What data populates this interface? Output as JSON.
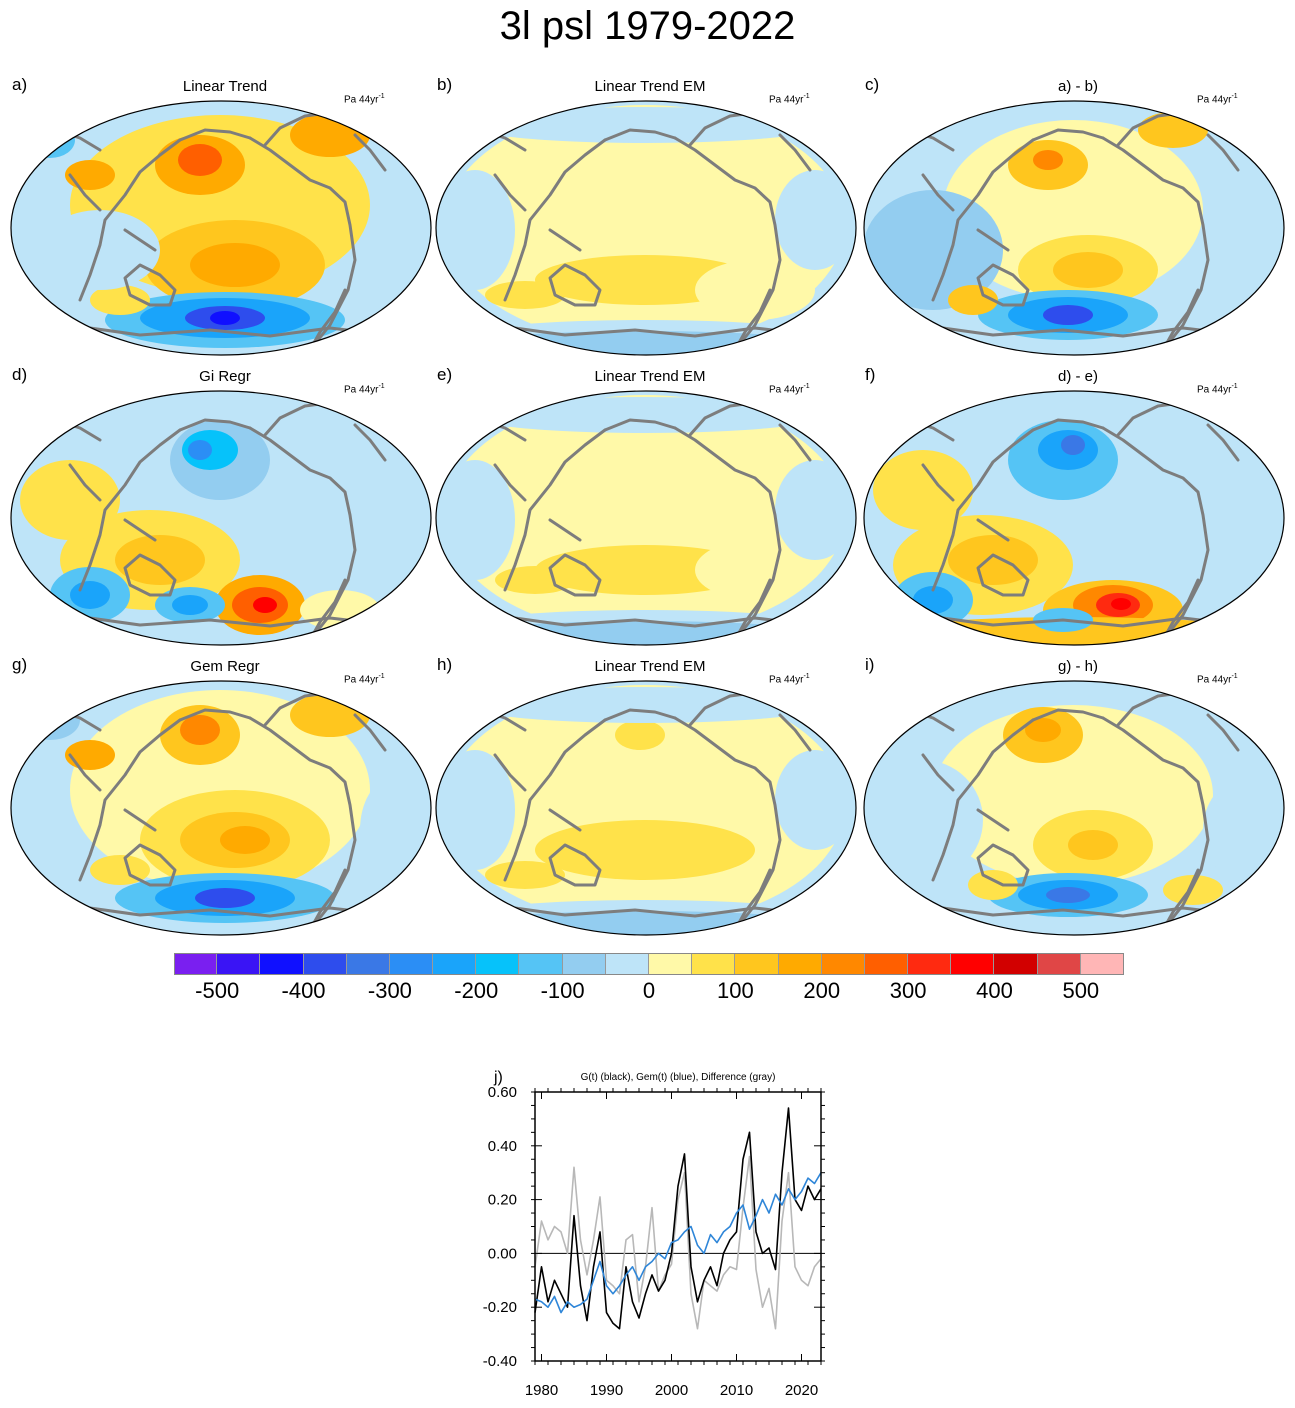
{
  "figure_title": "3l psl 1979-2022",
  "panels": [
    {
      "letter": "a)",
      "title": "Linear Trend",
      "unit": "Pa 44yr",
      "unit_exp": "-1"
    },
    {
      "letter": "b)",
      "title": "Linear Trend EM",
      "unit": "Pa 44yr",
      "unit_exp": "-1"
    },
    {
      "letter": "c)",
      "title": "a) - b)",
      "unit": "Pa 44yr",
      "unit_exp": "-1"
    },
    {
      "letter": "d)",
      "title": "Gi Regr",
      "unit": "Pa 44yr",
      "unit_exp": "-1"
    },
    {
      "letter": "e)",
      "title": "Linear Trend EM",
      "unit": "Pa 44yr",
      "unit_exp": "-1"
    },
    {
      "letter": "f)",
      "title": "d) - e)",
      "unit": "Pa 44yr",
      "unit_exp": "-1"
    },
    {
      "letter": "g)",
      "title": "Gem Regr",
      "unit": "Pa 44yr",
      "unit_exp": "-1"
    },
    {
      "letter": "h)",
      "title": "Linear Trend EM",
      "unit": "Pa 44yr",
      "unit_exp": "-1"
    },
    {
      "letter": "i)",
      "title": "g) - h)",
      "unit": "Pa 44yr",
      "unit_exp": "-1"
    }
  ],
  "colorbar": {
    "colors": [
      "#7a1ff0",
      "#3a14f5",
      "#1010ff",
      "#2e4ded",
      "#3a78e6",
      "#2b8ef5",
      "#1aa4fa",
      "#06c2fa",
      "#55c4f5",
      "#93cdf0",
      "#bee4f8",
      "#fff9a8",
      "#ffe24a",
      "#ffc61e",
      "#ffaa00",
      "#ff8800",
      "#ff5f00",
      "#ff2a10",
      "#ff0000",
      "#d20000",
      "#e04646",
      "#ffb6b6"
    ],
    "tick_labels": [
      "-500",
      "-400",
      "-300",
      "-200",
      "-100",
      "0",
      "100",
      "200",
      "300",
      "400",
      "500"
    ]
  },
  "chart_data": {
    "type": "line",
    "panel_letter": "j)",
    "title": "G(t)  (black), Gem(t) (blue), Difference (gray)",
    "xlim": [
      1979,
      2023
    ],
    "ylim": [
      -0.4,
      0.6
    ],
    "x_ticks": [
      1980,
      1990,
      2000,
      2010,
      2020
    ],
    "y_ticks": [
      "-0.40",
      "-0.20",
      "0.00",
      "0.20",
      "0.40",
      "0.60"
    ],
    "series": [
      {
        "name": "G(t)",
        "color": "#000000",
        "x": [
          1979,
          1980,
          1981,
          1982,
          1983,
          1984,
          1985,
          1986,
          1987,
          1988,
          1989,
          1990,
          1991,
          1992,
          1993,
          1994,
          1995,
          1996,
          1997,
          1998,
          1999,
          2000,
          2001,
          2002,
          2003,
          2004,
          2005,
          2006,
          2007,
          2008,
          2009,
          2010,
          2011,
          2012,
          2013,
          2014,
          2015,
          2016,
          2017,
          2018,
          2019,
          2020,
          2021,
          2022,
          2023
        ],
        "y": [
          -0.22,
          -0.05,
          -0.18,
          -0.1,
          -0.15,
          -0.2,
          0.14,
          -0.12,
          -0.25,
          -0.05,
          0.08,
          -0.22,
          -0.26,
          -0.28,
          -0.05,
          -0.18,
          -0.24,
          -0.15,
          -0.08,
          -0.14,
          -0.1,
          0.0,
          0.25,
          0.37,
          -0.05,
          -0.18,
          -0.1,
          -0.05,
          -0.12,
          0.0,
          0.05,
          0.08,
          0.35,
          0.45,
          0.08,
          0.0,
          0.02,
          -0.06,
          0.3,
          0.54,
          0.2,
          0.16,
          0.25,
          0.2,
          0.24
        ]
      },
      {
        "name": "Gem(t)",
        "color": "#2f86d8",
        "x": [
          1979,
          1980,
          1981,
          1982,
          1983,
          1984,
          1985,
          1986,
          1987,
          1988,
          1989,
          1990,
          1991,
          1992,
          1993,
          1994,
          1995,
          1996,
          1997,
          1998,
          1999,
          2000,
          2001,
          2002,
          2003,
          2004,
          2005,
          2006,
          2007,
          2008,
          2009,
          2010,
          2011,
          2012,
          2013,
          2014,
          2015,
          2016,
          2017,
          2018,
          2019,
          2020,
          2021,
          2022,
          2023
        ],
        "y": [
          -0.17,
          -0.18,
          -0.2,
          -0.16,
          -0.22,
          -0.18,
          -0.2,
          -0.19,
          -0.17,
          -0.1,
          -0.03,
          -0.12,
          -0.15,
          -0.12,
          -0.08,
          -0.05,
          -0.1,
          -0.05,
          -0.03,
          0.0,
          -0.02,
          0.04,
          0.05,
          0.08,
          0.1,
          0.03,
          0.0,
          0.07,
          0.04,
          0.08,
          0.1,
          0.15,
          0.18,
          0.09,
          0.14,
          0.2,
          0.15,
          0.22,
          0.18,
          0.24,
          0.2,
          0.23,
          0.28,
          0.26,
          0.3
        ]
      },
      {
        "name": "Difference",
        "color": "#b8b8b8",
        "x": [
          1979,
          1980,
          1981,
          1982,
          1983,
          1984,
          1985,
          1986,
          1987,
          1988,
          1989,
          1990,
          1991,
          1992,
          1993,
          1994,
          1995,
          1996,
          1997,
          1998,
          1999,
          2000,
          2001,
          2002,
          2003,
          2004,
          2005,
          2006,
          2007,
          2008,
          2009,
          2010,
          2011,
          2012,
          2013,
          2014,
          2015,
          2016,
          2017,
          2018,
          2019,
          2020,
          2021,
          2022,
          2023
        ],
        "y": [
          -0.05,
          0.12,
          0.05,
          0.1,
          0.08,
          0.0,
          0.32,
          0.05,
          -0.08,
          0.05,
          0.21,
          -0.1,
          -0.12,
          -0.15,
          0.05,
          0.07,
          -0.18,
          -0.05,
          0.17,
          -0.14,
          -0.08,
          -0.04,
          0.2,
          0.3,
          -0.15,
          -0.28,
          -0.1,
          -0.12,
          -0.14,
          -0.08,
          -0.05,
          -0.06,
          0.17,
          0.36,
          -0.06,
          -0.2,
          -0.13,
          -0.28,
          0.12,
          0.3,
          -0.05,
          -0.1,
          -0.12,
          -0.05,
          -0.02
        ]
      }
    ]
  }
}
